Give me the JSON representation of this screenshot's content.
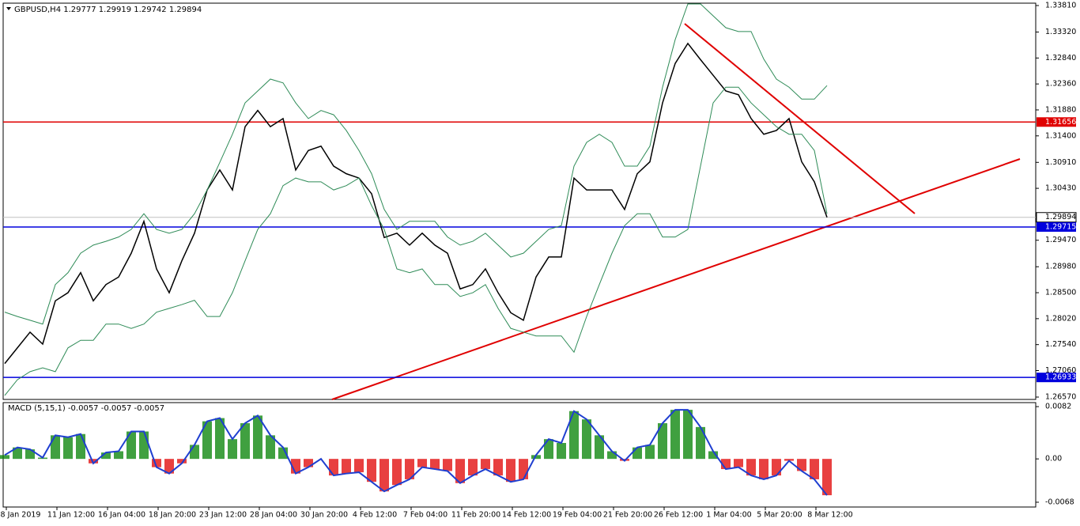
{
  "chart_data": [
    {
      "type": "line",
      "title": "GBPUSD,H4  1.29777 1.29919 1.29742 1.29894",
      "x_labels": [
        "8 Jan 2019",
        "11 Jan 12:00",
        "16 Jan 04:00",
        "18 Jan 20:00",
        "23 Jan 12:00",
        "28 Jan 04:00",
        "30 Jan 20:00",
        "4 Feb 12:00",
        "7 Feb 04:00",
        "11 Feb 20:00",
        "14 Feb 12:00",
        "19 Feb 04:00",
        "21 Feb 20:00",
        "26 Feb 12:00",
        "1 Mar 04:00",
        "5 Mar 20:00",
        "8 Mar 12:00"
      ],
      "ylim": [
        1.26526,
        1.33854
      ],
      "yticks": [
        {
          "value": 1.3381,
          "label": "1.33810"
        },
        {
          "value": 1.3332,
          "label": "1.33320"
        },
        {
          "value": 1.3284,
          "label": "1.32840"
        },
        {
          "value": 1.3236,
          "label": "1.32360"
        },
        {
          "value": 1.3188,
          "label": "1.31880"
        },
        {
          "value": 1.314,
          "label": "1.31400"
        },
        {
          "value": 1.3091,
          "label": "1.30910"
        },
        {
          "value": 1.3043,
          "label": "1.30430"
        },
        {
          "value": 1.2947,
          "label": "1.29470"
        },
        {
          "value": 1.2898,
          "label": "1.28980"
        },
        {
          "value": 1.285,
          "label": "1.28500"
        },
        {
          "value": 1.2802,
          "label": "1.28020"
        },
        {
          "value": 1.2754,
          "label": "1.27540"
        },
        {
          "value": 1.2706,
          "label": "1.27060"
        },
        {
          "value": 1.2657,
          "label": "1.26570"
        }
      ],
      "series": [
        {
          "color": "#000000",
          "values": [
            1.2719,
            1.2748,
            1.2777,
            1.2755,
            1.2835,
            1.285,
            1.2887,
            1.2835,
            1.2865,
            1.2879,
            1.2923,
            1.2982,
            1.2894,
            1.285,
            1.2909,
            1.296,
            1.304,
            1.3077,
            1.304,
            1.3157,
            1.3187,
            1.3157,
            1.3172,
            1.3077,
            1.3113,
            1.3121,
            1.3084,
            1.307,
            1.3062,
            1.3033,
            1.2952,
            1.296,
            1.2938,
            1.296,
            1.2938,
            1.2923,
            1.2857,
            1.2865,
            1.2894,
            1.285,
            1.2813,
            1.2799,
            1.2879,
            1.2916,
            1.2916,
            1.3062,
            1.304,
            1.304,
            1.304,
            1.3004,
            1.307,
            1.3092,
            1.3201,
            1.3274,
            1.3311,
            1.3281,
            1.3252,
            1.3223,
            1.3216,
            1.3172,
            1.3143,
            1.315,
            1.3172,
            1.3092,
            1.3055,
            1.29894
          ]
        },
        {
          "color": "#2e8b57",
          "values": [
            1.2814,
            1.2806,
            1.2799,
            1.2792,
            1.2865,
            1.2887,
            1.2923,
            1.2938,
            1.2945,
            1.2953,
            1.2967,
            1.2996,
            1.2967,
            1.296,
            1.2967,
            1.2996,
            1.304,
            1.3091,
            1.3143,
            1.3201,
            1.3223,
            1.3245,
            1.3238,
            1.3201,
            1.3172,
            1.3187,
            1.3179,
            1.315,
            1.3113,
            1.307,
            1.3004,
            1.2967,
            1.2982,
            1.2982,
            1.2982,
            1.2953,
            1.2938,
            1.2945,
            1.296,
            1.2938,
            1.2916,
            1.2923,
            1.2945,
            1.2967,
            1.2974,
            1.3084,
            1.3128,
            1.3143,
            1.3128,
            1.3084,
            1.3084,
            1.3121,
            1.323,
            1.3318,
            1.3384,
            1.3384,
            1.3362,
            1.334,
            1.3333,
            1.3333,
            1.3282,
            1.3245,
            1.323,
            1.3208,
            1.3208,
            1.3233
          ]
        },
        {
          "color": "#2e8b57",
          "values": [
            1.266,
            1.2689,
            1.2704,
            1.2711,
            1.2704,
            1.2748,
            1.2762,
            1.2762,
            1.2792,
            1.2792,
            1.2784,
            1.2792,
            1.2814,
            1.2821,
            1.2828,
            1.2836,
            1.2806,
            1.2806,
            1.285,
            1.2909,
            1.2967,
            1.2996,
            1.3048,
            1.3062,
            1.3055,
            1.3055,
            1.304,
            1.3048,
            1.3062,
            1.3011,
            1.2967,
            1.2894,
            1.2887,
            1.2894,
            1.2865,
            1.2865,
            1.2843,
            1.285,
            1.2865,
            1.2821,
            1.2784,
            1.2777,
            1.277,
            1.277,
            1.277,
            1.274,
            1.2806,
            1.2865,
            1.2923,
            1.2974,
            1.2996,
            1.2996,
            1.2953,
            1.2953,
            1.2967,
            1.3084,
            1.3201,
            1.323,
            1.323,
            1.3201,
            1.3179,
            1.3157,
            1.3143,
            1.3143,
            1.3113,
            1.2996
          ]
        }
      ],
      "levels": [
        {
          "value": 1.31656,
          "color": "#e00000"
        },
        {
          "value": 1.29715,
          "color": "#0000dd"
        },
        {
          "value": 1.26933,
          "color": "#0000dd"
        }
      ],
      "last_price": 1.29894
    },
    {
      "type": "bar",
      "title": "MACD (5,15,1) -0.0057 -0.0057 -0.0057",
      "ylim": [
        -0.00755,
        0.00883
      ],
      "yticks": [
        0.0082,
        {
          "value": 0,
          "label": "0.00"
        },
        -0.0068
      ],
      "up_color": "#008000",
      "down_color": "#e00000",
      "line_color": "#1f3fd0",
      "values": [
        0.0006,
        0.0018,
        0.0015,
        0.0002,
        0.0037,
        0.0034,
        0.0039,
        -0.0007,
        0.001,
        0.0012,
        0.0043,
        0.0043,
        -0.0013,
        -0.0023,
        -0.0007,
        0.0022,
        0.0059,
        0.0064,
        0.0031,
        0.0056,
        0.0068,
        0.0037,
        0.0018,
        -0.0023,
        -0.0013,
        0,
        -0.0026,
        -0.0023,
        -0.0021,
        -0.0036,
        -0.0051,
        -0.0041,
        -0.0032,
        -0.0013,
        -0.0016,
        -0.0019,
        -0.0038,
        -0.0026,
        -0.0016,
        -0.0026,
        -0.0036,
        -0.0032,
        0.0006,
        0.0031,
        0.0025,
        0.0075,
        0.0062,
        0.0037,
        0.0012,
        -0.0003,
        0.0018,
        0.0022,
        0.0056,
        0.0077,
        0.0077,
        0.005,
        0.0012,
        -0.0016,
        -0.0013,
        -0.0026,
        -0.0032,
        -0.0026,
        -0.0003,
        -0.0019,
        -0.0032,
        -0.0057
      ]
    }
  ]
}
